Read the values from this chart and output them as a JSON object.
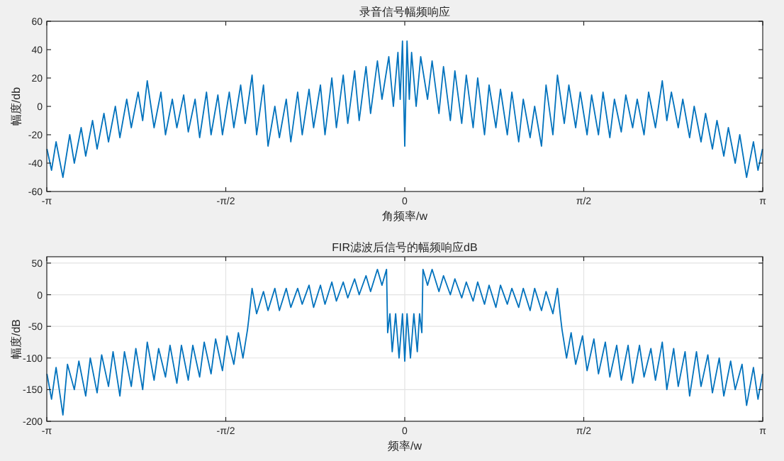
{
  "chart_data": [
    {
      "type": "line",
      "title": "录音信号幅频响应",
      "xlabel": "角频率/w",
      "ylabel": "幅度/db",
      "x": [
        -3.14,
        -3.1,
        -3.06,
        -3.0,
        -2.94,
        -2.9,
        -2.84,
        -2.8,
        -2.74,
        -2.7,
        -2.64,
        -2.6,
        -2.54,
        -2.5,
        -2.44,
        -2.4,
        -2.34,
        -2.3,
        -2.26,
        -2.2,
        -2.14,
        -2.1,
        -2.04,
        -2.0,
        -1.94,
        -1.9,
        -1.84,
        -1.8,
        -1.74,
        -1.7,
        -1.64,
        -1.6,
        -1.54,
        -1.5,
        -1.44,
        -1.4,
        -1.34,
        -1.3,
        -1.24,
        -1.2,
        -1.14,
        -1.1,
        -1.04,
        -1.0,
        -0.94,
        -0.9,
        -0.84,
        -0.8,
        -0.74,
        -0.7,
        -0.64,
        -0.6,
        -0.54,
        -0.5,
        -0.44,
        -0.4,
        -0.34,
        -0.3,
        -0.24,
        -0.2,
        -0.14,
        -0.1,
        -0.06,
        -0.04,
        -0.02,
        0,
        0.02,
        0.04,
        0.06,
        0.1,
        0.14,
        0.2,
        0.24,
        0.3,
        0.34,
        0.4,
        0.44,
        0.5,
        0.54,
        0.6,
        0.64,
        0.7,
        0.74,
        0.8,
        0.84,
        0.9,
        0.94,
        1.0,
        1.04,
        1.1,
        1.14,
        1.2,
        1.24,
        1.3,
        1.34,
        1.4,
        1.44,
        1.5,
        1.54,
        1.6,
        1.64,
        1.7,
        1.74,
        1.8,
        1.84,
        1.9,
        1.94,
        2.0,
        2.04,
        2.1,
        2.14,
        2.2,
        2.26,
        2.3,
        2.34,
        2.4,
        2.44,
        2.5,
        2.54,
        2.6,
        2.64,
        2.7,
        2.74,
        2.8,
        2.84,
        2.9,
        2.94,
        3.0,
        3.06,
        3.1,
        3.14
      ],
      "series": [
        {
          "color": "#0072bd",
          "values": [
            -30,
            -45,
            -25,
            -50,
            -20,
            -40,
            -15,
            -35,
            -10,
            -30,
            -5,
            -25,
            0,
            -22,
            5,
            -15,
            10,
            -10,
            18,
            -15,
            10,
            -20,
            5,
            -15,
            8,
            -18,
            5,
            -22,
            10,
            -20,
            8,
            -20,
            10,
            -15,
            15,
            -12,
            22,
            -20,
            15,
            -28,
            0,
            -22,
            5,
            -25,
            10,
            -20,
            12,
            -15,
            15,
            -20,
            20,
            -15,
            22,
            -12,
            25,
            -10,
            28,
            -5,
            32,
            5,
            35,
            0,
            38,
            5,
            46,
            -28,
            46,
            5,
            38,
            0,
            35,
            5,
            32,
            -5,
            28,
            -10,
            25,
            -12,
            22,
            -15,
            20,
            -20,
            15,
            -15,
            12,
            -20,
            10,
            -25,
            5,
            -22,
            0,
            -28,
            15,
            -20,
            22,
            -12,
            15,
            -15,
            10,
            -20,
            8,
            -20,
            10,
            -22,
            5,
            -18,
            8,
            -15,
            5,
            -20,
            10,
            -15,
            18,
            -10,
            10,
            -15,
            5,
            -22,
            0,
            -25,
            -5,
            -30,
            -10,
            -35,
            -15,
            -40,
            -20,
            -50,
            -25,
            -45,
            -30
          ]
        }
      ],
      "xlim": [
        -3.1416,
        3.1416
      ],
      "xticks": [
        {
          "value": -3.1416,
          "label": "-π"
        },
        {
          "value": -1.5708,
          "label": "-π/2"
        },
        0,
        {
          "value": 1.5708,
          "label": "π/2"
        },
        {
          "value": 3.1416,
          "label": "π"
        }
      ],
      "ylim": [
        -60,
        60
      ],
      "yticks": [
        -60,
        -40,
        -20,
        0,
        20,
        40,
        60
      ],
      "grid": false
    },
    {
      "type": "line",
      "title": "FIR滤波后信号的幅频响应dB",
      "xlabel": "频率/w",
      "ylabel": "幅度/dB",
      "x": [
        -3.14,
        -3.1,
        -3.06,
        -3.0,
        -2.96,
        -2.9,
        -2.86,
        -2.8,
        -2.76,
        -2.7,
        -2.66,
        -2.6,
        -2.56,
        -2.5,
        -2.46,
        -2.4,
        -2.36,
        -2.3,
        -2.26,
        -2.2,
        -2.16,
        -2.1,
        -2.06,
        -2.0,
        -1.96,
        -1.9,
        -1.86,
        -1.8,
        -1.76,
        -1.7,
        -1.66,
        -1.6,
        -1.56,
        -1.5,
        -1.46,
        -1.42,
        -1.38,
        -1.37,
        -1.34,
        -1.3,
        -1.24,
        -1.2,
        -1.14,
        -1.1,
        -1.04,
        -1.0,
        -0.94,
        -0.9,
        -0.84,
        -0.8,
        -0.74,
        -0.7,
        -0.64,
        -0.6,
        -0.54,
        -0.5,
        -0.44,
        -0.4,
        -0.34,
        -0.3,
        -0.24,
        -0.2,
        -0.16,
        -0.15,
        -0.13,
        -0.11,
        -0.08,
        -0.05,
        -0.02,
        0,
        0.02,
        0.05,
        0.08,
        0.11,
        0.13,
        0.15,
        0.16,
        0.2,
        0.24,
        0.3,
        0.34,
        0.4,
        0.44,
        0.5,
        0.54,
        0.6,
        0.64,
        0.7,
        0.74,
        0.8,
        0.84,
        0.9,
        0.94,
        1.0,
        1.04,
        1.1,
        1.14,
        1.2,
        1.24,
        1.3,
        1.34,
        1.37,
        1.38,
        1.42,
        1.46,
        1.5,
        1.56,
        1.6,
        1.66,
        1.7,
        1.76,
        1.8,
        1.86,
        1.9,
        1.96,
        2.0,
        2.06,
        2.1,
        2.16,
        2.2,
        2.26,
        2.3,
        2.36,
        2.4,
        2.46,
        2.5,
        2.56,
        2.6,
        2.66,
        2.7,
        2.76,
        2.8,
        2.86,
        2.9,
        2.96,
        3.0,
        3.06,
        3.1,
        3.14
      ],
      "series": [
        {
          "color": "#0072bd",
          "values": [
            -125,
            -165,
            -115,
            -190,
            -110,
            -150,
            -105,
            -160,
            -100,
            -155,
            -95,
            -145,
            -90,
            -160,
            -90,
            -145,
            -85,
            -150,
            -75,
            -135,
            -85,
            -130,
            -80,
            -140,
            -80,
            -135,
            -80,
            -130,
            -75,
            -125,
            -70,
            -120,
            -65,
            -110,
            -60,
            -100,
            -55,
            -40,
            10,
            -30,
            5,
            -25,
            10,
            -25,
            10,
            -20,
            10,
            -15,
            15,
            -20,
            15,
            -15,
            20,
            -10,
            20,
            -5,
            25,
            0,
            30,
            5,
            40,
            15,
            40,
            -60,
            -30,
            -90,
            -30,
            -100,
            -30,
            -105,
            -30,
            -100,
            -30,
            -90,
            -30,
            -60,
            40,
            15,
            40,
            5,
            30,
            0,
            25,
            -5,
            20,
            -10,
            20,
            -15,
            15,
            -20,
            15,
            -15,
            10,
            -20,
            10,
            -25,
            10,
            -25,
            5,
            -30,
            10,
            -40,
            -55,
            -100,
            -60,
            -110,
            -65,
            -120,
            -70,
            -125,
            -75,
            -130,
            -80,
            -135,
            -80,
            -140,
            -80,
            -130,
            -85,
            -135,
            -75,
            -150,
            -85,
            -145,
            -90,
            -160,
            -90,
            -145,
            -95,
            -155,
            -100,
            -160,
            -105,
            -150,
            -110,
            -175,
            -115,
            -165,
            -125
          ]
        }
      ],
      "xlim": [
        -3.1416,
        3.1416
      ],
      "xticks": [
        {
          "value": -3.1416,
          "label": "-π"
        },
        {
          "value": -1.5708,
          "label": "-π/2"
        },
        0,
        {
          "value": 1.5708,
          "label": "π/2"
        },
        {
          "value": 3.1416,
          "label": "π"
        }
      ],
      "ylim": [
        -200,
        60
      ],
      "yticks": [
        -200,
        -150,
        -100,
        -50,
        0,
        50
      ],
      "grid": true
    }
  ]
}
